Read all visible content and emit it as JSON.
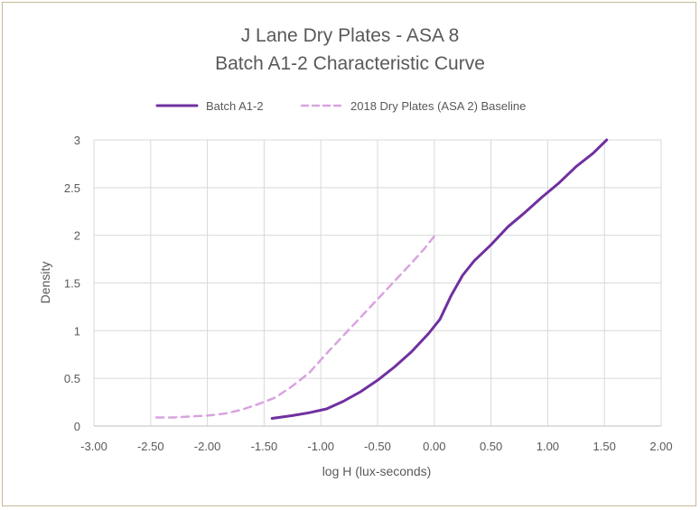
{
  "chart_data": {
    "type": "line",
    "title": "J Lane Dry Plates - ASA 8",
    "subtitle": "Batch A1-2 Characteristic Curve",
    "xlabel": "log H (lux-seconds)",
    "ylabel": "Density",
    "xlim": [
      -3.0,
      2.0
    ],
    "ylim": [
      0,
      3
    ],
    "xticks": [
      "-3.00",
      "-2.50",
      "-2.00",
      "-1.50",
      "-1.00",
      "-0.50",
      "0.00",
      "0.50",
      "1.00",
      "1.50",
      "2.00"
    ],
    "yticks": [
      "0",
      "0.5",
      "1",
      "1.5",
      "2",
      "2.5",
      "3"
    ],
    "grid": "vertical and horizontal",
    "legend_position": "top",
    "series": [
      {
        "name": "Batch A1-2",
        "color": "#7030a0",
        "style": "solid",
        "x": [
          -1.43,
          -1.25,
          -1.1,
          -0.95,
          -0.8,
          -0.65,
          -0.5,
          -0.35,
          -0.2,
          -0.05,
          0.05,
          0.15,
          0.25,
          0.35,
          0.5,
          0.65,
          0.8,
          0.95,
          1.1,
          1.25,
          1.4,
          1.52
        ],
        "y": [
          0.08,
          0.11,
          0.14,
          0.18,
          0.26,
          0.36,
          0.48,
          0.62,
          0.78,
          0.97,
          1.12,
          1.37,
          1.58,
          1.73,
          1.9,
          2.09,
          2.24,
          2.4,
          2.55,
          2.72,
          2.86,
          3.0
        ]
      },
      {
        "name": "2018 Dry Plates (ASA 2) Baseline",
        "color": "#d9a3e0",
        "style": "dashed",
        "x": [
          -2.45,
          -2.3,
          -2.15,
          -2.0,
          -1.85,
          -1.7,
          -1.55,
          -1.4,
          -1.25,
          -1.1,
          -0.95,
          -0.8,
          -0.65,
          -0.5,
          -0.35,
          -0.2,
          -0.08,
          0.0
        ],
        "y": [
          0.09,
          0.09,
          0.1,
          0.11,
          0.13,
          0.17,
          0.23,
          0.3,
          0.42,
          0.56,
          0.76,
          0.95,
          1.14,
          1.33,
          1.52,
          1.71,
          1.87,
          1.99
        ]
      }
    ]
  }
}
